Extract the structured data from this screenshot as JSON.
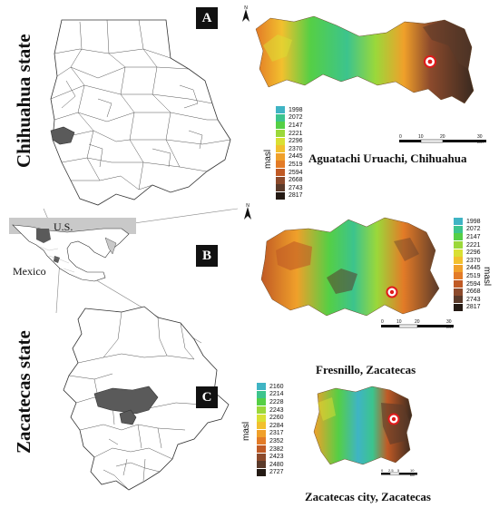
{
  "panels": {
    "a": "A",
    "b": "B",
    "c": "C"
  },
  "states": {
    "chihuahua": "Chihuahua state",
    "zacatecas": "Zacatecas state"
  },
  "country_labels": {
    "us": "U.S.",
    "mexico": "Mexico"
  },
  "maps": [
    {
      "caption": "Aguatachi Uruachi, Chihuahua",
      "legend_unit": "masl",
      "legend_values": [
        "1998",
        "2072",
        "2147",
        "2221",
        "2296",
        "2370",
        "2445",
        "2519",
        "2594",
        "2668",
        "2743",
        "2817"
      ],
      "scale_labels": [
        "0",
        "10",
        "20",
        "30 km"
      ]
    },
    {
      "caption": "Fresnillo, Zacatecas",
      "legend_unit": "masl",
      "legend_values": [
        "1998",
        "2072",
        "2147",
        "2221",
        "2296",
        "2370",
        "2445",
        "2519",
        "2594",
        "2668",
        "2743",
        "2817"
      ],
      "scale_labels": [
        "0",
        "10",
        "20",
        "30 km"
      ]
    },
    {
      "caption": "Zacatecas city, Zacatecas",
      "legend_unit": "masl",
      "legend_values": [
        "2160",
        "2214",
        "2228",
        "2243",
        "2260",
        "2284",
        "2317",
        "2352",
        "2382",
        "2423",
        "2480",
        "2727"
      ],
      "scale_labels": [
        "0",
        "2.5",
        "5",
        "10 km"
      ]
    }
  ],
  "colors": {
    "elevation_ramp": [
      "#3fb4c4",
      "#3cc48d",
      "#55cf45",
      "#9bd83a",
      "#d9e034",
      "#f2c02e",
      "#f0a02a",
      "#e37b27",
      "#c05a25",
      "#8c4a2c",
      "#5a3a2a",
      "#241a14"
    ],
    "municipality_highlight": "#5a5a5a",
    "us_shading": "#c9c9c9",
    "study_site": "#e01b1b"
  },
  "icons": [
    "north-arrow-icon",
    "study-site-marker-icon"
  ]
}
